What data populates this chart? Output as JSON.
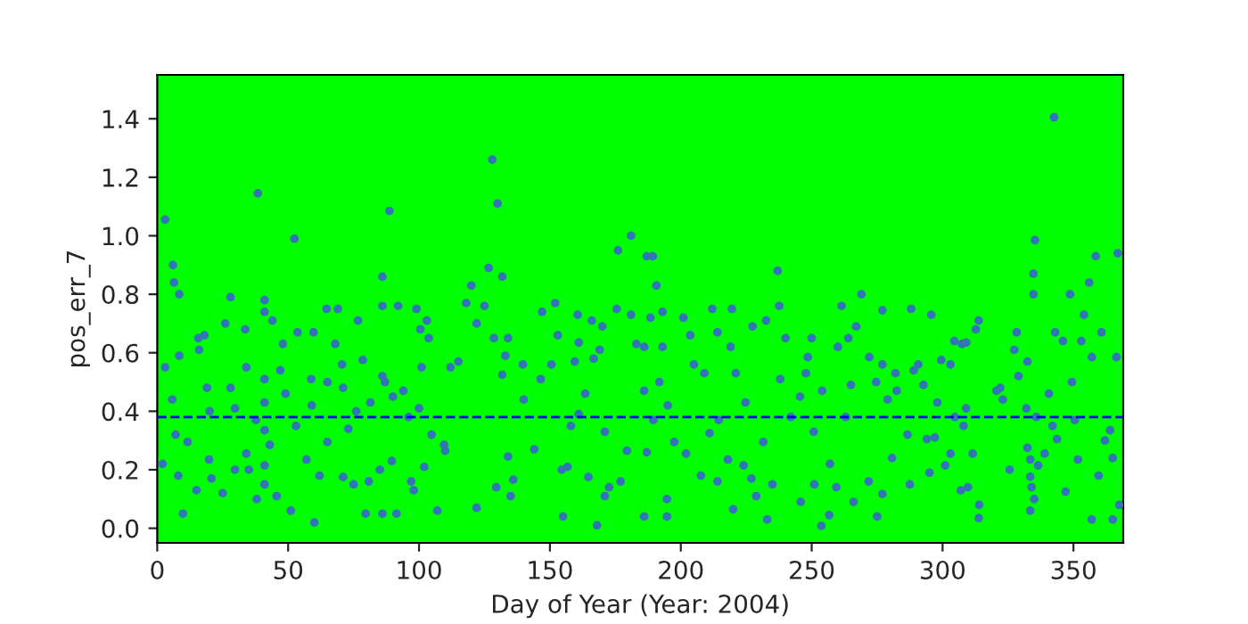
{
  "chart_data": {
    "type": "scatter",
    "xlabel": "Day of Year (Year: 2004)",
    "ylabel": "pos_err_7",
    "xlim": [
      0,
      369
    ],
    "ylim": [
      -0.05,
      1.55
    ],
    "xticks": [
      0,
      50,
      100,
      150,
      200,
      250,
      300,
      350
    ],
    "yticks": [
      {
        "value": 0,
        "label": "0.0"
      },
      {
        "value": 0.2,
        "label": "0.2"
      },
      {
        "value": 0.4,
        "label": "0.4"
      },
      {
        "value": 0.6,
        "label": "0.6"
      },
      {
        "value": 0.8,
        "label": "0.8"
      },
      {
        "value": 1.0,
        "label": "1.0"
      },
      {
        "value": 1.2,
        "label": "1.2"
      },
      {
        "value": 1.4,
        "label": "1.4"
      }
    ],
    "grid": false,
    "marker": "circle",
    "ref_lines": [
      {
        "axis": "y",
        "value": 0.38,
        "color": "#0000ff",
        "line_style": "dashed"
      }
    ],
    "series": [
      {
        "color": "#3274b5",
        "x": [
          3,
          6,
          6.4,
          8.4,
          3,
          8.4,
          5.7,
          7,
          2,
          8,
          9.8,
          15,
          11.6,
          15.7,
          18,
          16,
          19,
          20,
          19.8,
          20.7,
          25,
          26,
          28,
          28,
          29.7,
          29.7,
          33.6,
          34,
          34,
          35,
          37.7,
          38.4,
          41,
          41,
          41,
          41,
          41,
          41,
          41,
          38,
          43,
          44,
          45.6,
          47,
          49,
          48,
          51,
          52.4,
          53.6,
          53,
          57,
          58.8,
          59.7,
          60,
          59,
          62,
          64.7,
          65,
          65,
          68,
          69,
          70.6,
          71,
          71,
          73,
          76,
          75,
          76.7,
          78.5,
          79.6,
          80.8,
          81.4,
          85,
          86,
          86,
          86,
          86,
          87,
          88.7,
          90,
          89.6,
          91.4,
          92,
          94,
          96,
          97,
          98,
          99,
          100.5,
          100,
          101,
          102,
          103,
          103.7,
          104.8,
          107,
          109.6,
          110,
          112,
          115,
          118,
          120,
          122,
          122,
          126.6,
          125,
          128,
          128.6,
          129.5,
          130,
          131.8,
          131.8,
          133,
          134,
          134,
          135,
          136,
          139.7,
          140,
          144,
          147,
          146.5,
          150.6,
          152,
          153,
          154.5,
          155,
          156.7,
          158,
          159.5,
          160.6,
          161,
          161,
          163.5,
          164.7,
          166,
          166.7,
          168,
          169,
          170,
          171,
          171,
          172.6,
          175.5,
          176,
          177,
          179.4,
          181,
          181,
          183,
          186,
          187,
          189.3,
          190.7,
          193,
          188.4,
          193,
          186,
          191.8,
          186,
          195,
          189.5,
          197.5,
          187,
          202,
          194.7,
          194.7,
          201,
          203.6,
          205,
          207.7,
          209,
          212,
          214,
          211,
          214,
          214.5,
          218,
          219.5,
          219,
          220,
          221,
          224,
          224.7,
          227,
          227.4,
          228.8,
          231.5,
          232.6,
          233,
          235,
          237,
          237.6,
          238,
          240,
          242,
          245.8,
          245.5,
          247.8,
          248.5,
          250,
          250.8,
          251,
          253.7,
          254,
          256.7,
          257,
          259.4,
          260,
          261.4,
          263,
          264,
          265,
          266,
          267,
          269,
          271.8,
          272,
          274.6,
          275,
          277,
          277,
          277,
          279,
          280.7,
          282,
          282.5,
          286.6,
          287.5,
          288,
          289,
          290.7,
          292.7,
          294,
          295,
          295.7,
          297,
          298,
          299.5,
          301,
          303,
          303,
          304.5,
          304.7,
          307,
          307.4,
          308,
          309,
          309,
          309.7,
          311.5,
          312.7,
          313.8,
          314,
          313.8,
          320.6,
          322,
          323,
          325.6,
          327.4,
          328.3,
          329,
          332,
          332.4,
          333.5,
          333.5,
          334,
          333.5,
          334.7,
          334.7,
          335.3,
          335,
          335.8,
          336.5,
          332.4,
          339,
          340.6,
          342.6,
          343,
          342,
          343.7,
          346,
          347,
          348.7,
          349.4,
          350.5,
          351.7,
          353,
          354,
          356,
          357,
          357,
          358.5,
          360.7,
          359.6,
          362,
          364,
          365,
          365,
          366.4,
          366.9,
          367.5
        ],
        "values": [
          1.055,
          0.9,
          0.84,
          0.8,
          0.55,
          0.59,
          0.44,
          0.32,
          0.22,
          0.18,
          0.05,
          0.13,
          0.295,
          0.65,
          0.66,
          0.61,
          0.48,
          0.4,
          0.235,
          0.17,
          0.12,
          0.7,
          0.79,
          0.48,
          0.41,
          0.2,
          0.68,
          0.55,
          0.255,
          0.2,
          0.37,
          1.145,
          0.78,
          0.74,
          0.51,
          0.43,
          0.335,
          0.215,
          0.15,
          0.1,
          0.285,
          0.71,
          0.11,
          0.54,
          0.46,
          0.63,
          0.06,
          0.99,
          0.67,
          0.35,
          0.235,
          0.51,
          0.67,
          0.02,
          0.42,
          0.18,
          0.75,
          0.5,
          0.295,
          0.63,
          0.75,
          0.56,
          0.175,
          0.48,
          0.34,
          0.4,
          0.15,
          0.71,
          0.575,
          0.05,
          0.16,
          0.43,
          0.2,
          0.86,
          0.76,
          0.52,
          0.05,
          0.5,
          1.085,
          0.45,
          0.23,
          0.05,
          0.76,
          0.47,
          0.38,
          0.16,
          0.13,
          0.75,
          0.68,
          0.41,
          0.55,
          0.21,
          0.71,
          0.65,
          0.32,
          0.06,
          0.285,
          0.265,
          0.55,
          0.57,
          0.77,
          0.83,
          0.7,
          0.07,
          0.89,
          0.76,
          1.26,
          0.65,
          0.14,
          1.11,
          0.86,
          0.525,
          0.59,
          0.65,
          0.245,
          0.11,
          0.166,
          0.56,
          0.44,
          0.27,
          0.74,
          0.51,
          0.56,
          0.77,
          0.66,
          0.2,
          0.04,
          0.21,
          0.35,
          0.57,
          0.73,
          0.635,
          0.39,
          0.46,
          0.175,
          0.71,
          0.58,
          0.01,
          0.61,
          0.69,
          0.33,
          0.11,
          0.14,
          0.75,
          0.95,
          0.16,
          0.265,
          1.0,
          0.73,
          0.63,
          0.04,
          0.93,
          0.93,
          0.83,
          0.74,
          0.72,
          0.62,
          0.62,
          0.5,
          0.47,
          0.42,
          0.37,
          0.295,
          0.26,
          0.255,
          0.1,
          0.04,
          0.72,
          0.66,
          0.56,
          0.18,
          0.53,
          0.75,
          0.67,
          0.325,
          0.16,
          0.37,
          0.235,
          0.75,
          0.62,
          0.065,
          0.53,
          0.215,
          0.43,
          0.17,
          0.69,
          0.11,
          0.295,
          0.71,
          0.03,
          0.15,
          0.88,
          0.76,
          0.51,
          0.65,
          0.38,
          0.09,
          0.45,
          0.53,
          0.585,
          0.65,
          0.33,
          0.15,
          0.008,
          0.47,
          0.045,
          0.22,
          0.14,
          0.62,
          0.76,
          0.38,
          0.65,
          0.49,
          0.09,
          0.69,
          0.8,
          0.16,
          0.585,
          0.5,
          0.04,
          0.117,
          0.745,
          0.56,
          0.44,
          0.24,
          0.53,
          0.47,
          0.32,
          0.15,
          0.75,
          0.54,
          0.56,
          0.49,
          0.305,
          0.19,
          0.73,
          0.31,
          0.43,
          0.575,
          0.215,
          0.56,
          0.255,
          0.64,
          0.38,
          0.13,
          0.63,
          0.35,
          0.41,
          0.635,
          0.14,
          0.255,
          0.68,
          0.71,
          0.08,
          0.035,
          0.47,
          0.48,
          0.44,
          0.2,
          0.61,
          0.67,
          0.52,
          0.41,
          0.275,
          0.235,
          0.176,
          0.14,
          0.06,
          0.87,
          0.8,
          0.985,
          0.1,
          0.38,
          0.215,
          0.57,
          0.255,
          0.46,
          1.405,
          0.67,
          0.35,
          0.305,
          0.64,
          0.125,
          0.8,
          0.5,
          0.37,
          0.235,
          0.64,
          0.73,
          0.84,
          0.03,
          0.585,
          0.93,
          0.67,
          0.18,
          0.3,
          0.335,
          0.03,
          0.24,
          0.585,
          0.94,
          0.08
        ]
      }
    ]
  }
}
